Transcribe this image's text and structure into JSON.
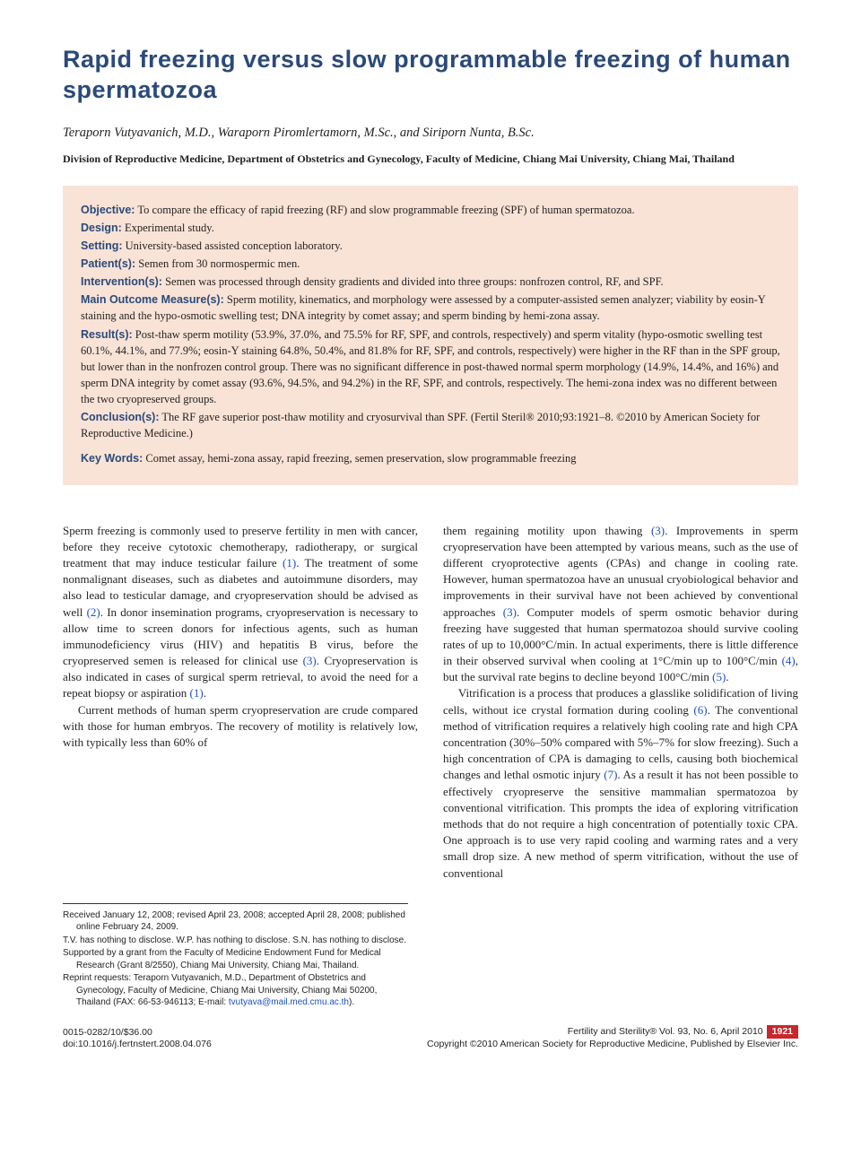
{
  "title": "Rapid freezing versus slow programmable freezing of human spermatozoa",
  "authors": "Teraporn Vutyavanich, M.D., Waraporn Piromlertamorn, M.Sc., and Siriporn Nunta, B.Sc.",
  "affiliation": "Division of Reproductive Medicine, Department of Obstetrics and Gynecology, Faculty of Medicine, Chiang Mai University, Chiang Mai, Thailand",
  "abstract": {
    "objective_label": "Objective:",
    "objective": "To compare the efficacy of rapid freezing (RF) and slow programmable freezing (SPF) of human spermatozoa.",
    "design_label": "Design:",
    "design": "Experimental study.",
    "setting_label": "Setting:",
    "setting": "University-based assisted conception laboratory.",
    "patients_label": "Patient(s):",
    "patients": "Semen from 30 normospermic men.",
    "interventions_label": "Intervention(s):",
    "interventions": "Semen was processed through density gradients and divided into three groups: nonfrozen control, RF, and SPF.",
    "outcome_label": "Main Outcome Measure(s):",
    "outcome": "Sperm motility, kinematics, and morphology were assessed by a computer-assisted semen analyzer; viability by eosin-Y staining and the hypo-osmotic swelling test; DNA integrity by comet assay; and sperm binding by hemi-zona assay.",
    "results_label": "Result(s):",
    "results": "Post-thaw sperm motility (53.9%, 37.0%, and 75.5% for RF, SPF, and controls, respectively) and sperm vitality (hypo-osmotic swelling test 60.1%, 44.1%, and 77.9%; eosin-Y staining 64.8%, 50.4%, and 81.8% for RF, SPF, and controls, respectively) were higher in the RF than in the SPF group, but lower than in the nonfrozen control group. There was no significant difference in post-thawed normal sperm morphology (14.9%, 14.4%, and 16%) and sperm DNA integrity by comet assay (93.6%, 94.5%, and 94.2%) in the RF, SPF, and controls, respectively. The hemi-zona index was no different between the two cryopreserved groups.",
    "conclusions_label": "Conclusion(s):",
    "conclusions": "The RF gave superior post-thaw motility and cryosurvival than SPF. (Fertil Steril® 2010;93:1921–8. ©2010 by American Society for Reproductive Medicine.)",
    "keywords_label": "Key Words:",
    "keywords": "Comet assay, hemi-zona assay, rapid freezing, semen preservation, slow programmable freezing"
  },
  "body": {
    "col1_p1_a": "Sperm freezing is commonly used to preserve fertility in men with cancer, before they receive cytotoxic chemotherapy, radiotherapy, or surgical treatment that may induce testicular failure ",
    "ref1": "(1)",
    "col1_p1_b": ". The treatment of some nonmalignant diseases, such as diabetes and autoimmune disorders, may also lead to testicular damage, and cryopreservation should be advised as well ",
    "ref2": "(2)",
    "col1_p1_c": ". In donor insemination programs, cryopreservation is necessary to allow time to screen donors for infectious agents, such as human immunodeficiency virus (HIV) and hepatitis B virus, before the cryopreserved semen is released for clinical use ",
    "ref3": "(3)",
    "col1_p1_d": ". Cryopreservation is also indicated in cases of surgical sperm retrieval, to avoid the need for a repeat biopsy or aspiration ",
    "ref1b": "(1)",
    "col1_p1_e": ".",
    "col1_p2": "Current methods of human sperm cryopreservation are crude compared with those for human embryos. The recovery of motility is relatively low, with typically less than 60% of",
    "col2_p1_a": "them regaining motility upon thawing ",
    "ref3b": "(3)",
    "col2_p1_b": ". Improvements in sperm cryopreservation have been attempted by various means, such as the use of different cryoprotective agents (CPAs) and change in cooling rate. However, human spermatozoa have an unusual cryobiological behavior and improvements in their survival have not been achieved by conventional approaches ",
    "ref3c": "(3)",
    "col2_p1_c": ". Computer models of sperm osmotic behavior during freezing have suggested that human spermatozoa should survive cooling rates of up to 10,000°C/min. In actual experiments, there is little difference in their observed survival when cooling at 1°C/min up to 100°C/min ",
    "ref4": "(4)",
    "col2_p1_d": ", but the survival rate begins to decline beyond 100°C/min ",
    "ref5": "(5)",
    "col2_p1_e": ".",
    "col2_p2_a": "Vitrification is a process that produces a glasslike solidification of living cells, without ice crystal formation during cooling ",
    "ref6": "(6)",
    "col2_p2_b": ". The conventional method of vitrification requires a relatively high cooling rate and high CPA concentration (30%–50% compared with 5%–7% for slow freezing). Such a high concentration of CPA is damaging to cells, causing both biochemical changes and lethal osmotic injury ",
    "ref7": "(7)",
    "col2_p2_c": ". As a result it has not been possible to effectively cryopreserve the sensitive mammalian spermatozoa by conventional vitrification. This prompts the idea of exploring vitrification methods that do not require a high concentration of potentially toxic CPA. One approach is to use very rapid cooling and warming rates and a very small drop size. A new method of sperm vitrification, without the use of conventional"
  },
  "footnotes": {
    "received": "Received January 12, 2008; revised April 23, 2008; accepted April 28, 2008; published online February 24, 2009.",
    "disclosure": "T.V. has nothing to disclose. W.P. has nothing to disclose. S.N. has nothing to disclose.",
    "supported": "Supported by a grant from the Faculty of Medicine Endowment Fund for Medical Research (Grant 8/2550), Chiang Mai University, Chiang Mai, Thailand.",
    "reprint_a": "Reprint requests: Teraporn Vutyavanich, M.D., Department of Obstetrics and Gynecology, Faculty of Medicine, Chiang Mai University, Chiang Mai 50200, Thailand (FAX: 66-53-946113; E-mail: ",
    "email": "tvutyava@mail.med.cmu.ac.th",
    "reprint_b": ")."
  },
  "footer": {
    "issn": "0015-0282/10/$36.00",
    "doi": "doi:10.1016/j.fertnstert.2008.04.076",
    "journal": "Fertility and Sterility® Vol. 93, No. 6, April 2010",
    "copyright": "Copyright ©2010 American Society for Reproductive Medicine, Published by Elsevier Inc.",
    "page": "1921"
  }
}
